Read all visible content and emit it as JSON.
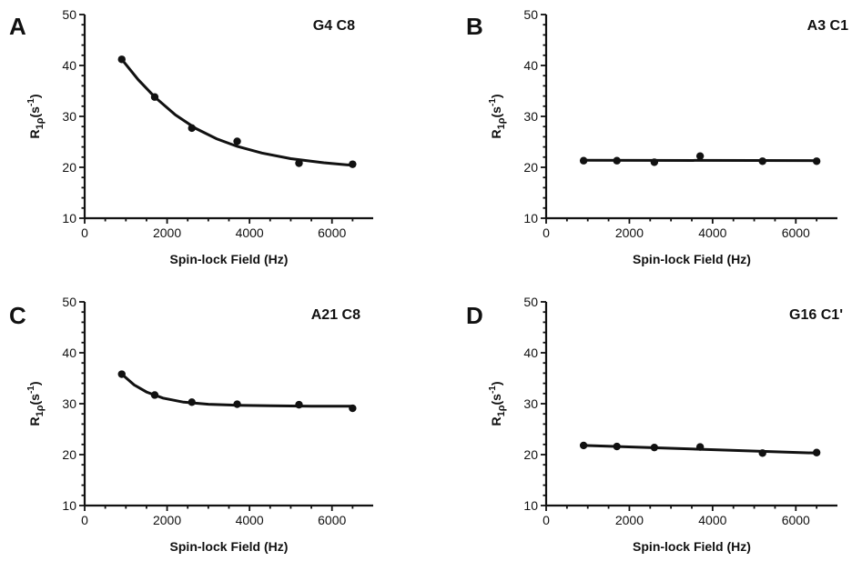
{
  "chart_data": [
    {
      "panel": "A",
      "type": "scatter",
      "annotation": "G4  C8",
      "xlabel": "Spin-lock Field (Hz)",
      "ylabel": "R1ρ(s-1)",
      "ylabel_parts": {
        "main": "R",
        "sub": "1ρ",
        "mid": "(s",
        "sup": "-1",
        "end": ")"
      },
      "xlim": [
        0,
        7000
      ],
      "ylim": [
        10,
        50
      ],
      "x_ticks": [
        "0",
        "2000",
        "4000",
        "6000"
      ],
      "y_ticks": [
        "10",
        "20",
        "30",
        "40",
        "50"
      ],
      "points": [
        {
          "x": 900,
          "y": 41.2
        },
        {
          "x": 1700,
          "y": 33.8
        },
        {
          "x": 2600,
          "y": 27.7
        },
        {
          "x": 3700,
          "y": 25.1
        },
        {
          "x": 5200,
          "y": 20.8
        },
        {
          "x": 6500,
          "y": 20.6
        }
      ],
      "fit_curve": [
        {
          "x": 900,
          "y": 41.2
        },
        {
          "x": 1300,
          "y": 37.2
        },
        {
          "x": 1700,
          "y": 33.8
        },
        {
          "x": 2200,
          "y": 30.3
        },
        {
          "x": 2700,
          "y": 27.6
        },
        {
          "x": 3200,
          "y": 25.6
        },
        {
          "x": 3700,
          "y": 24.1
        },
        {
          "x": 4300,
          "y": 22.8
        },
        {
          "x": 5000,
          "y": 21.7
        },
        {
          "x": 5800,
          "y": 20.9
        },
        {
          "x": 6500,
          "y": 20.4
        }
      ]
    },
    {
      "panel": "B",
      "type": "scatter",
      "annotation": "A3  C1",
      "xlabel": "Spin-lock Field (Hz)",
      "ylabel": "R1ρ(s-1)",
      "ylabel_parts": {
        "main": "R",
        "sub": "1ρ",
        "mid": "(s",
        "sup": "-1",
        "end": ")"
      },
      "xlim": [
        0,
        7000
      ],
      "ylim": [
        10,
        50
      ],
      "x_ticks": [
        "0",
        "2000",
        "4000",
        "6000"
      ],
      "y_ticks": [
        "10",
        "20",
        "30",
        "40",
        "50"
      ],
      "points": [
        {
          "x": 900,
          "y": 21.3
        },
        {
          "x": 1700,
          "y": 21.3
        },
        {
          "x": 2600,
          "y": 21.0
        },
        {
          "x": 3700,
          "y": 22.2
        },
        {
          "x": 5200,
          "y": 21.2
        },
        {
          "x": 6500,
          "y": 21.2
        }
      ],
      "fit_curve": [
        {
          "x": 900,
          "y": 21.4
        },
        {
          "x": 6500,
          "y": 21.3
        }
      ]
    },
    {
      "panel": "C",
      "type": "scatter",
      "annotation": "A21 C8",
      "xlabel": "Spin-lock Field (Hz)",
      "ylabel": "R1ρ(s-1)",
      "ylabel_parts": {
        "main": "R",
        "sub": "1ρ",
        "mid": "(s",
        "sup": "-1",
        "end": ")"
      },
      "xlim": [
        0,
        7000
      ],
      "ylim": [
        10,
        50
      ],
      "x_ticks": [
        "0",
        "2000",
        "4000",
        "6000"
      ],
      "y_ticks": [
        "10",
        "20",
        "30",
        "40",
        "50"
      ],
      "points": [
        {
          "x": 900,
          "y": 35.8
        },
        {
          "x": 1700,
          "y": 31.7
        },
        {
          "x": 2600,
          "y": 30.3
        },
        {
          "x": 3700,
          "y": 29.9
        },
        {
          "x": 5200,
          "y": 29.8
        },
        {
          "x": 6500,
          "y": 29.1
        }
      ],
      "fit_curve": [
        {
          "x": 900,
          "y": 35.8
        },
        {
          "x": 1200,
          "y": 33.7
        },
        {
          "x": 1500,
          "y": 32.3
        },
        {
          "x": 1900,
          "y": 31.1
        },
        {
          "x": 2400,
          "y": 30.3
        },
        {
          "x": 3000,
          "y": 29.9
        },
        {
          "x": 3700,
          "y": 29.7
        },
        {
          "x": 4500,
          "y": 29.6
        },
        {
          "x": 5500,
          "y": 29.5
        },
        {
          "x": 6500,
          "y": 29.5
        }
      ]
    },
    {
      "panel": "D",
      "type": "scatter",
      "annotation": "G16  C1'",
      "xlabel": "Spin-lock Field (Hz)",
      "ylabel": "R1ρ(s-1)",
      "ylabel_parts": {
        "main": "R",
        "sub": "1ρ",
        "mid": "(s",
        "sup": "-1",
        "end": ")"
      },
      "xlim": [
        0,
        7000
      ],
      "ylim": [
        10,
        50
      ],
      "x_ticks": [
        "0",
        "2000",
        "4000",
        "6000"
      ],
      "y_ticks": [
        "10",
        "20",
        "30",
        "40",
        "50"
      ],
      "points": [
        {
          "x": 900,
          "y": 21.8
        },
        {
          "x": 1700,
          "y": 21.6
        },
        {
          "x": 2600,
          "y": 21.4
        },
        {
          "x": 3700,
          "y": 21.5
        },
        {
          "x": 5200,
          "y": 20.3
        },
        {
          "x": 6500,
          "y": 20.4
        }
      ],
      "fit_curve": [
        {
          "x": 900,
          "y": 21.8
        },
        {
          "x": 6500,
          "y": 20.3
        }
      ]
    }
  ],
  "style": {
    "ink": "#111111",
    "background": "#ffffff"
  }
}
